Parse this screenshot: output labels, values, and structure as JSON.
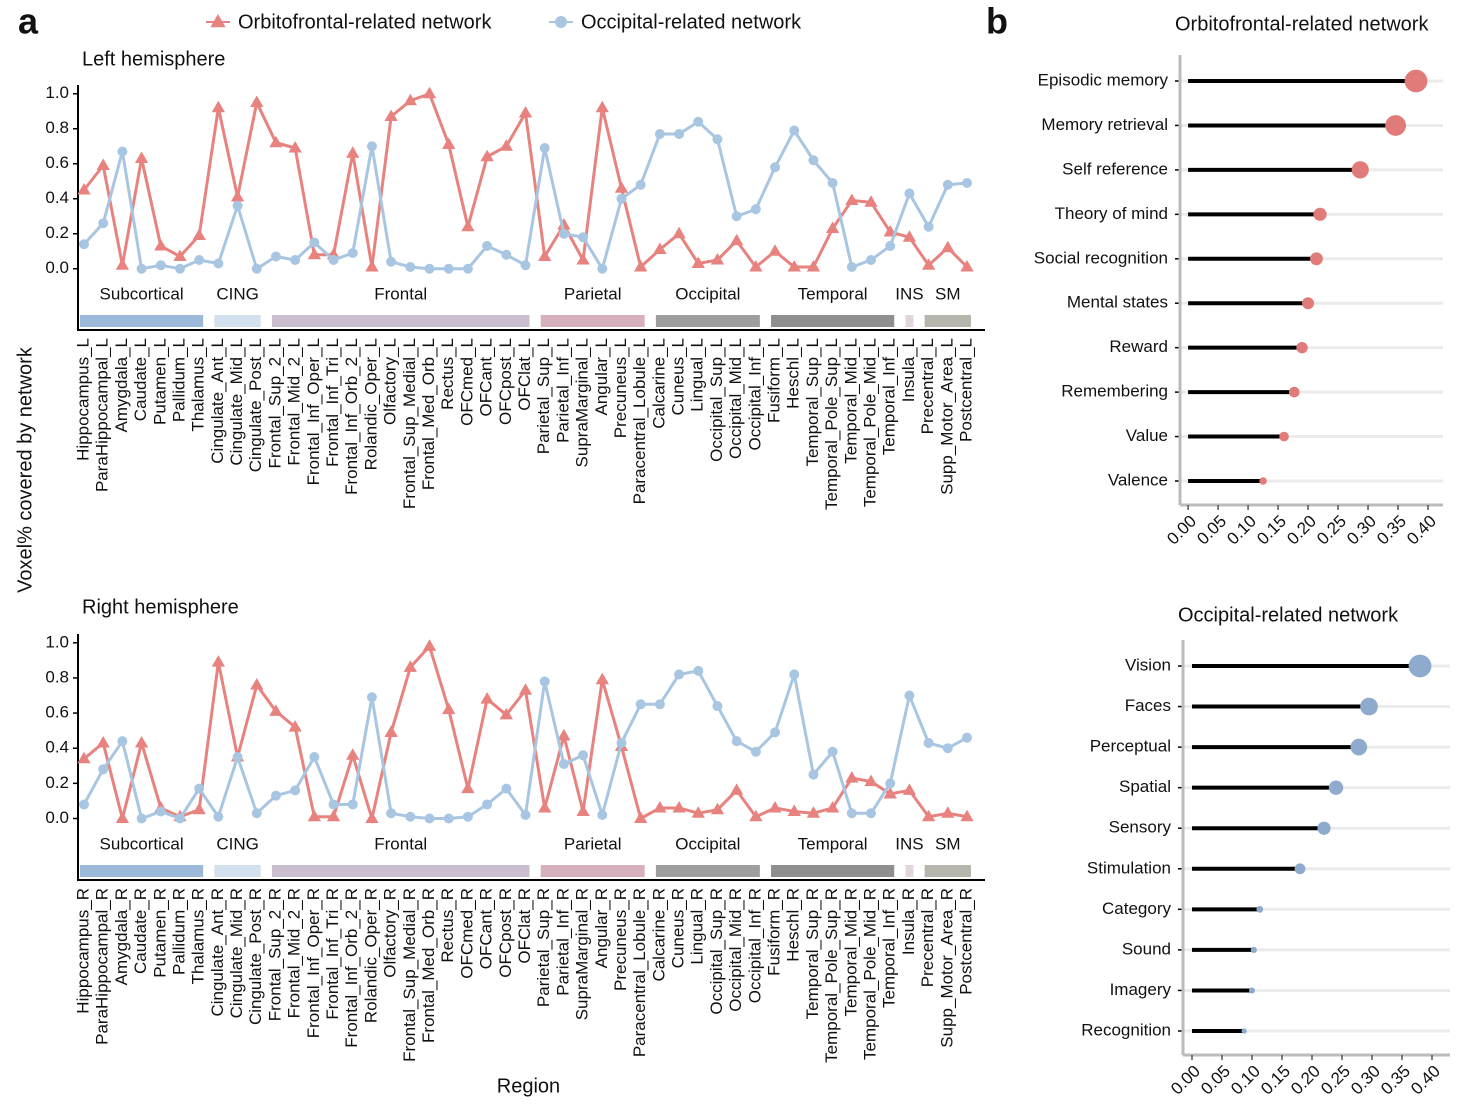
{
  "panel_labels": [
    "a",
    "b"
  ],
  "y_label": "Voxel% covered by network",
  "chart_data": [
    {
      "type": "line",
      "title": "Left hemisphere",
      "categories": [
        "Hippocampus_L",
        "ParaHippocampal_L",
        "Amygdala_L",
        "Caudate_L",
        "Putamen_L",
        "Pallidum_L",
        "Thalamus_L",
        "Cingulate_Ant_L",
        "Cingulate_Mid_L",
        "Cingulate_Post_L",
        "Frontal_Sup_2_L",
        "Frontal_Mid_2_L",
        "Frontal_Inf_Oper_L",
        "Frontal_Inf_Tri_L",
        "Frontal_Inf_Orb_2_L",
        "Rolandic_Oper_L",
        "Olfactory_L",
        "Frontal_Sup_Medial_L",
        "Frontal_Med_Orb_L",
        "Rectus_L",
        "OFCmed_L",
        "OFCant_L",
        "OFCpost_L",
        "OFClat_L",
        "Parietal_Sup_L",
        "Parietal_Inf_L",
        "SupraMarginal_L",
        "Angular_L",
        "Precuneus_L",
        "Paracentral_Lobule_L",
        "Calcarine_L",
        "Cuneus_L",
        "Lingual_L",
        "Occipital_Sup_L",
        "Occipital_Mid_L",
        "Occipital_Inf_L",
        "Fusiform_L",
        "Heschl_L",
        "Temporal_Sup_L",
        "Temporal_Pole_Sup_L",
        "Temporal_Mid_L",
        "Temporal_Pole_Mid_L",
        "Temporal_Inf_L",
        "Insula_L",
        "Precentral_L",
        "Supp_Motor_Area_L",
        "Postcentral_L"
      ],
      "series": [
        {
          "name": "Orbitofrontal-related network",
          "color": "#e8827f",
          "marker": "triangle",
          "values": [
            0.45,
            0.59,
            0.02,
            0.63,
            0.13,
            0.07,
            0.19,
            0.92,
            0.41,
            0.95,
            0.72,
            0.69,
            0.08,
            0.08,
            0.66,
            0.01,
            0.87,
            0.96,
            1.0,
            0.71,
            0.24,
            0.64,
            0.7,
            0.89,
            0.07,
            0.25,
            0.05,
            0.92,
            0.46,
            0.01,
            0.11,
            0.2,
            0.03,
            0.05,
            0.16,
            0.01,
            0.1,
            0.01,
            0.01,
            0.23,
            0.39,
            0.38,
            0.21,
            0.18,
            0.02,
            0.12,
            0.01
          ]
        },
        {
          "name": "Occipital-related network",
          "color": "#a8c6e2",
          "marker": "circle",
          "values": [
            0.14,
            0.26,
            0.67,
            0.0,
            0.02,
            0.0,
            0.05,
            0.03,
            0.36,
            0.0,
            0.07,
            0.05,
            0.15,
            0.05,
            0.09,
            0.7,
            0.04,
            0.01,
            0.0,
            0.0,
            0.0,
            0.13,
            0.08,
            0.02,
            0.69,
            0.2,
            0.18,
            0.0,
            0.4,
            0.48,
            0.77,
            0.77,
            0.84,
            0.74,
            0.3,
            0.34,
            0.58,
            0.79,
            0.62,
            0.49,
            0.01,
            0.05,
            0.13,
            0.43,
            0.24,
            0.48,
            0.49
          ]
        }
      ],
      "ylim": [
        -0.35,
        1.05
      ],
      "yticks": [
        {
          "value": 0,
          "label": "0.0"
        },
        0.2,
        0.4,
        0.6,
        0.8,
        {
          "value": 1,
          "label": "1.0"
        }
      ],
      "groups": [
        {
          "label": "Subcortical",
          "from": "Hippocampus_L",
          "to": "Thalamus_L",
          "color": "#9db9d9"
        },
        {
          "label": "CING",
          "from": "Cingulate_Ant_L",
          "to": "Cingulate_Post_L",
          "color": "#d3e1ef"
        },
        {
          "label": "Frontal",
          "from": "Frontal_Sup_2_L",
          "to": "OFClat_L",
          "color": "#cbbfcf"
        },
        {
          "label": "Parietal",
          "from": "Parietal_Sup_L",
          "to": "Paracentral_Lobule_L",
          "color": "#d6b0bd"
        },
        {
          "label": "Occipital",
          "from": "Calcarine_L",
          "to": "Occipital_Inf_L",
          "color": "#9e9e9e"
        },
        {
          "label": "Temporal",
          "from": "Fusiform_L",
          "to": "Temporal_Inf_L",
          "color": "#8f8f8f"
        },
        {
          "label": "INS",
          "from": "Insula_L",
          "to": "Insula_L",
          "color": "#e3d6da"
        },
        {
          "label": "SM",
          "from": "Precentral_L",
          "to": "Postcentral_L",
          "color": "#b6b6ad"
        }
      ]
    },
    {
      "type": "line",
      "title": "Right hemisphere",
      "x_label": "Region",
      "categories": [
        "Hippocampus_R",
        "ParaHippocampal_R",
        "Amygdala_R",
        "Caudate_R",
        "Putamen_R",
        "Pallidum_R",
        "Thalamus_R",
        "Cingulate_Ant_R",
        "Cingulate_Mid_R",
        "Cingulate_Post_R",
        "Frontal_Sup_2_R",
        "Frontal_Mid_2_R",
        "Frontal_Inf_Oper_R",
        "Frontal_Inf_Tri_R",
        "Frontal_Inf_Orb_2_R",
        "Rolandic_Oper_R",
        "Olfactory_R",
        "Frontal_Sup_Medial_R",
        "Frontal_Med_Orb_R",
        "Rectus_R",
        "OFCmed_R",
        "OFCant_R",
        "OFCpost_R",
        "OFClat_R",
        "Parietal_Sup_R",
        "Parietal_Inf_R",
        "SupraMarginal_R",
        "Angular_R",
        "Precuneus_R",
        "Paracentral_Lobule_R",
        "Calcarine_R",
        "Cuneus_R",
        "Lingual_R",
        "Occipital_Sup_R",
        "Occipital_Mid_R",
        "Occipital_Inf_R",
        "Fusiform_R",
        "Heschl_R",
        "Temporal_Sup_R",
        "Temporal_Pole_Sup_R",
        "Temporal_Mid_R",
        "Temporal_Pole_Mid_R",
        "Temporal_Inf_R",
        "Insula_R",
        "Precentral_R",
        "Supp_Motor_Area_R",
        "Postcentral_R"
      ],
      "series": [
        {
          "name": "Orbitofrontal-related network",
          "color": "#e8827f",
          "marker": "triangle",
          "values": [
            0.34,
            0.43,
            0.0,
            0.43,
            0.06,
            0.01,
            0.05,
            0.89,
            0.35,
            0.76,
            0.61,
            0.52,
            0.01,
            0.01,
            0.36,
            0.0,
            0.49,
            0.86,
            0.98,
            0.62,
            0.17,
            0.68,
            0.59,
            0.73,
            0.06,
            0.47,
            0.04,
            0.79,
            0.41,
            0.0,
            0.06,
            0.06,
            0.03,
            0.05,
            0.16,
            0.01,
            0.06,
            0.04,
            0.03,
            0.06,
            0.23,
            0.21,
            0.14,
            0.16,
            0.01,
            0.03,
            0.01
          ]
        },
        {
          "name": "Occipital-related network",
          "color": "#a8c6e2",
          "marker": "circle",
          "values": [
            0.08,
            0.28,
            0.44,
            0.0,
            0.04,
            0.0,
            0.17,
            0.01,
            0.35,
            0.03,
            0.13,
            0.16,
            0.35,
            0.08,
            0.08,
            0.69,
            0.03,
            0.01,
            0.0,
            0.0,
            0.01,
            0.08,
            0.17,
            0.02,
            0.78,
            0.31,
            0.36,
            0.02,
            0.43,
            0.65,
            0.65,
            0.82,
            0.84,
            0.64,
            0.44,
            0.38,
            0.49,
            0.82,
            0.25,
            0.38,
            0.03,
            0.03,
            0.2,
            0.7,
            0.43,
            0.4,
            0.46
          ]
        }
      ],
      "ylim": [
        -0.35,
        1.05
      ],
      "yticks": [
        {
          "value": 0,
          "label": "0.0"
        },
        0.2,
        0.4,
        0.6,
        0.8,
        {
          "value": 1,
          "label": "1.0"
        }
      ],
      "groups": [
        {
          "label": "Subcortical",
          "from": "Hippocampus_R",
          "to": "Thalamus_R",
          "color": "#9db9d9"
        },
        {
          "label": "CING",
          "from": "Cingulate_Ant_R",
          "to": "Cingulate_Post_R",
          "color": "#d3e1ef"
        },
        {
          "label": "Frontal",
          "from": "Frontal_Sup_2_R",
          "to": "OFClat_R",
          "color": "#cbbfcf"
        },
        {
          "label": "Parietal",
          "from": "Parietal_Sup_R",
          "to": "Paracentral_Lobule_R",
          "color": "#d6b0bd"
        },
        {
          "label": "Occipital",
          "from": "Calcarine_R",
          "to": "Occipital_Inf_R",
          "color": "#9e9e9e"
        },
        {
          "label": "Temporal",
          "from": "Fusiform_R",
          "to": "Temporal_Inf_R",
          "color": "#8f8f8f"
        },
        {
          "label": "INS",
          "from": "Insula_R",
          "to": "Insula_R",
          "color": "#e3d6da"
        },
        {
          "label": "SM",
          "from": "Precentral_R",
          "to": "Postcentral_R",
          "color": "#b6b6ad"
        }
      ]
    },
    {
      "type": "lollipop",
      "title": "Orbitofrontal-related network",
      "color": "#e07b7a",
      "categories": [
        "Episodic memory",
        "Memory retrieval",
        "Self reference",
        "Theory of mind",
        "Social recognition",
        "Mental states",
        "Reward",
        "Remembering",
        "Value",
        "Valence"
      ],
      "values": [
        0.38,
        0.346,
        0.287,
        0.22,
        0.214,
        0.2,
        0.19,
        0.177,
        0.16,
        0.125
      ],
      "xlim": [
        -0.0135,
        0.425
      ],
      "xticks": [
        {
          "value": 0,
          "label": "0.00"
        },
        0.05,
        {
          "value": 0.1,
          "label": "0.10"
        },
        0.15,
        {
          "value": 0.2,
          "label": "0.20"
        },
        0.25,
        {
          "value": 0.3,
          "label": "0.30"
        },
        0.35,
        {
          "value": 0.4,
          "label": "0.40"
        }
      ]
    },
    {
      "type": "lollipop",
      "title": "Occipital-related network",
      "color": "#8eaacc",
      "categories": [
        "Vision",
        "Faces",
        "Perceptual",
        "Spatial",
        "Sensory",
        "Stimulation",
        "Category",
        "Sound",
        "Imagery",
        "Recognition"
      ],
      "values": [
        0.38,
        0.295,
        0.278,
        0.24,
        0.22,
        0.18,
        0.113,
        0.103,
        0.1,
        0.087
      ],
      "xlim": [
        -0.015,
        0.43
      ],
      "xticks": [
        {
          "value": 0,
          "label": "0.00"
        },
        0.05,
        {
          "value": 0.1,
          "label": "0.10"
        },
        0.15,
        {
          "value": 0.2,
          "label": "0.20"
        },
        0.25,
        {
          "value": 0.3,
          "label": "0.30"
        },
        0.35,
        {
          "value": 0.4,
          "label": "0.40"
        }
      ]
    }
  ]
}
